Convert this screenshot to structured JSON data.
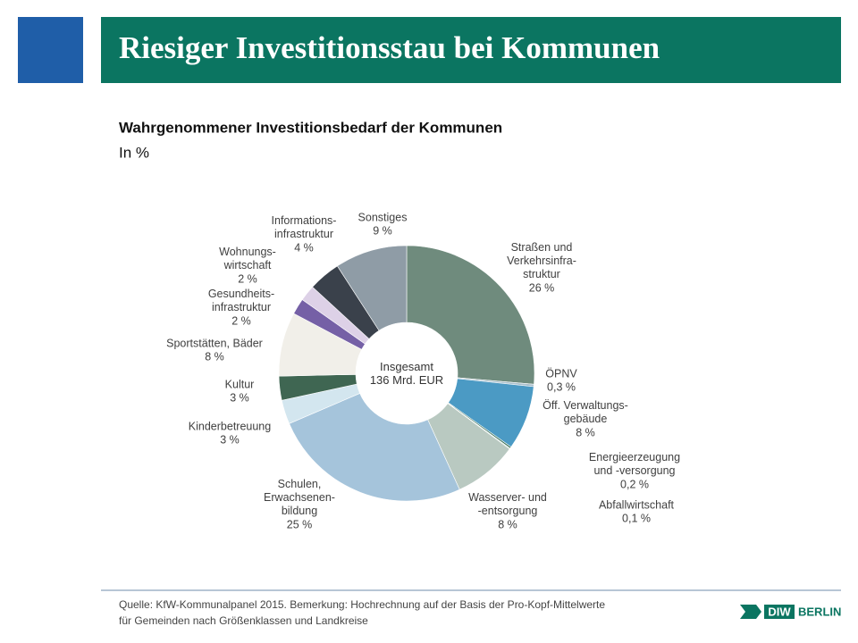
{
  "header": {
    "title": "Riesiger Investitionsstau bei Kommunen"
  },
  "chart_data": {
    "type": "donut",
    "title": "Wahrgenommener Investitionsbedarf der Kommunen",
    "subtitle": "In %",
    "center_label": "Insgesamt\n136 Mrd. EUR",
    "categories": [
      "Straßen und\nVerkehrsinfra-\nstruktur",
      "ÖPNV",
      "Öff. Verwaltungs-\ngebäude",
      "Energieerzeugung\nund -versorgung",
      "Abfallwirtschaft",
      "Wasserver- und\n-entsorgung",
      "Schulen,\nErwachsenen-\nbildung",
      "Kinderbetreuung",
      "Kultur",
      "Sportstätten, Bäder",
      "Gesundheits-\ninfrastruktur",
      "Wohnungs-\nwirtschaft",
      "Informations-\ninfrastruktur",
      "Sonstiges"
    ],
    "values": [
      26,
      0.3,
      8,
      0.2,
      0.1,
      8,
      25,
      3,
      3,
      8,
      2,
      2,
      4,
      9
    ],
    "value_labels": [
      "26 %",
      "0,3 %",
      "8 %",
      "0,2 %",
      "0,1 %",
      "8 %",
      "25 %",
      "3 %",
      "3 %",
      "8 %",
      "2 %",
      "2 %",
      "4 %",
      "9 %"
    ],
    "colors": [
      "#6f8b7d",
      "#a9bfcc",
      "#4b9ac4",
      "#2f6b52",
      "#93b3a4",
      "#b9c9c1",
      "#a5c4db",
      "#d3e6ef",
      "#3f6652",
      "#f1efe9",
      "#7560a6",
      "#ddd1e7",
      "#3a414b",
      "#8f9ca6"
    ]
  },
  "footer": {
    "source": "Quelle: KfW-Kommunalpanel 2015. Bemerkung: Hochrechnung auf der Basis der Pro-Kopf-Mittelwerte\nfür Gemeinden nach Größenklassen und Landkreise",
    "logo": {
      "left": "DIW",
      "right": "BERLIN"
    }
  }
}
